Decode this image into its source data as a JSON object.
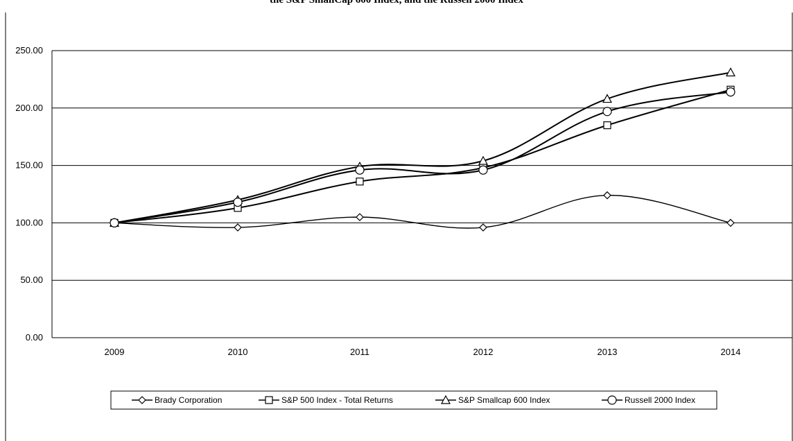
{
  "chart_data": {
    "type": "line",
    "title": "the S&P SmallCap 600 Index, and the Russell 2000 Index",
    "categories": [
      "2009",
      "2010",
      "2011",
      "2012",
      "2013",
      "2014"
    ],
    "ylim": [
      0,
      250
    ],
    "yticks": [
      "0.00",
      "50.00",
      "100.00",
      "150.00",
      "200.00",
      "250.00"
    ],
    "grid": true,
    "legend_position": "bottom",
    "series": [
      {
        "name": "Brady Corporation",
        "marker": "diamond",
        "values": [
          100,
          96,
          105,
          96,
          124,
          100
        ]
      },
      {
        "name": "S&P 500 Index - Total Returns",
        "marker": "square",
        "values": [
          100,
          113,
          136,
          148,
          185,
          216
        ]
      },
      {
        "name": "S&P Smallcap 600 Index",
        "marker": "triangle",
        "values": [
          100,
          120,
          149,
          154,
          208,
          231
        ]
      },
      {
        "name": "Russell 2000 Index",
        "marker": "circle",
        "values": [
          100,
          118,
          146,
          146,
          197,
          214
        ]
      }
    ]
  }
}
